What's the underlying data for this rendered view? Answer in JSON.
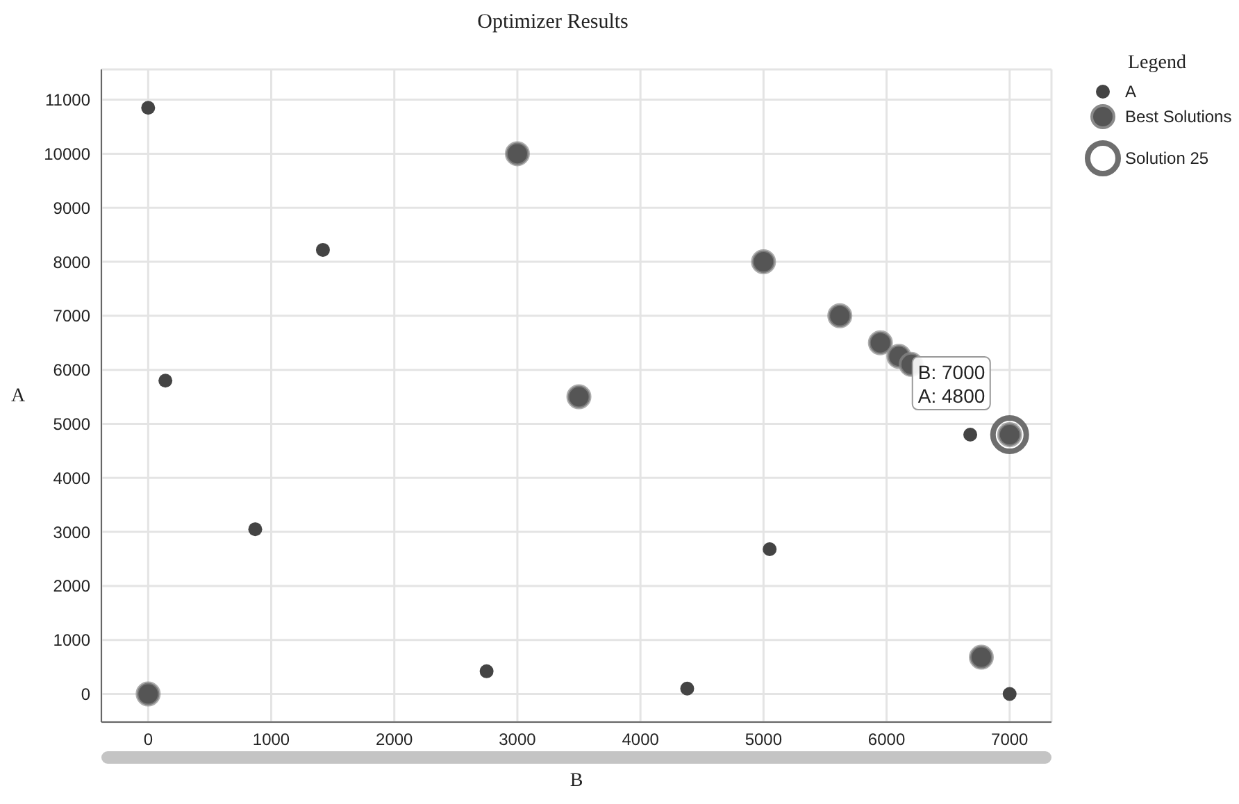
{
  "chart_data": {
    "type": "scatter",
    "title": "Optimizer Results",
    "xlabel": "B",
    "ylabel": "A",
    "legend_title": "Legend",
    "legend": "top right",
    "grid": true,
    "marker": "circle",
    "xlim": [
      -380,
      7340
    ],
    "xticks": [
      0,
      1000,
      2000,
      3000,
      4000,
      5000,
      6000,
      7000
    ],
    "ylim": [
      -520,
      11560
    ],
    "yticks": [
      0,
      1000,
      2000,
      3000,
      4000,
      5000,
      6000,
      7000,
      8000,
      9000,
      10000,
      11000
    ],
    "series": [
      {
        "name": "A",
        "color": "#444444",
        "x": [
          0,
          140,
          870,
          1420,
          2750,
          4380,
          5050,
          6680,
          7000
        ],
        "values": [
          10850,
          5800,
          3050,
          8220,
          420,
          100,
          2680,
          4800,
          0
        ]
      },
      {
        "name": "Best Solutions",
        "color": "#555555",
        "x": [
          0,
          3000,
          3500,
          5000,
          5620,
          5950,
          6100,
          6200,
          6770,
          7000
        ],
        "values": [
          0,
          10000,
          5500,
          8000,
          7000,
          6500,
          6250,
          6100,
          680,
          4800
        ]
      },
      {
        "name": "Solution 25",
        "color": "#6e6e6e",
        "x": [
          7000
        ],
        "values": [
          4800
        ]
      }
    ],
    "annotations": [
      {
        "text": "B: 7000\nA: 4800",
        "x": 7000,
        "y": 4800
      }
    ]
  }
}
